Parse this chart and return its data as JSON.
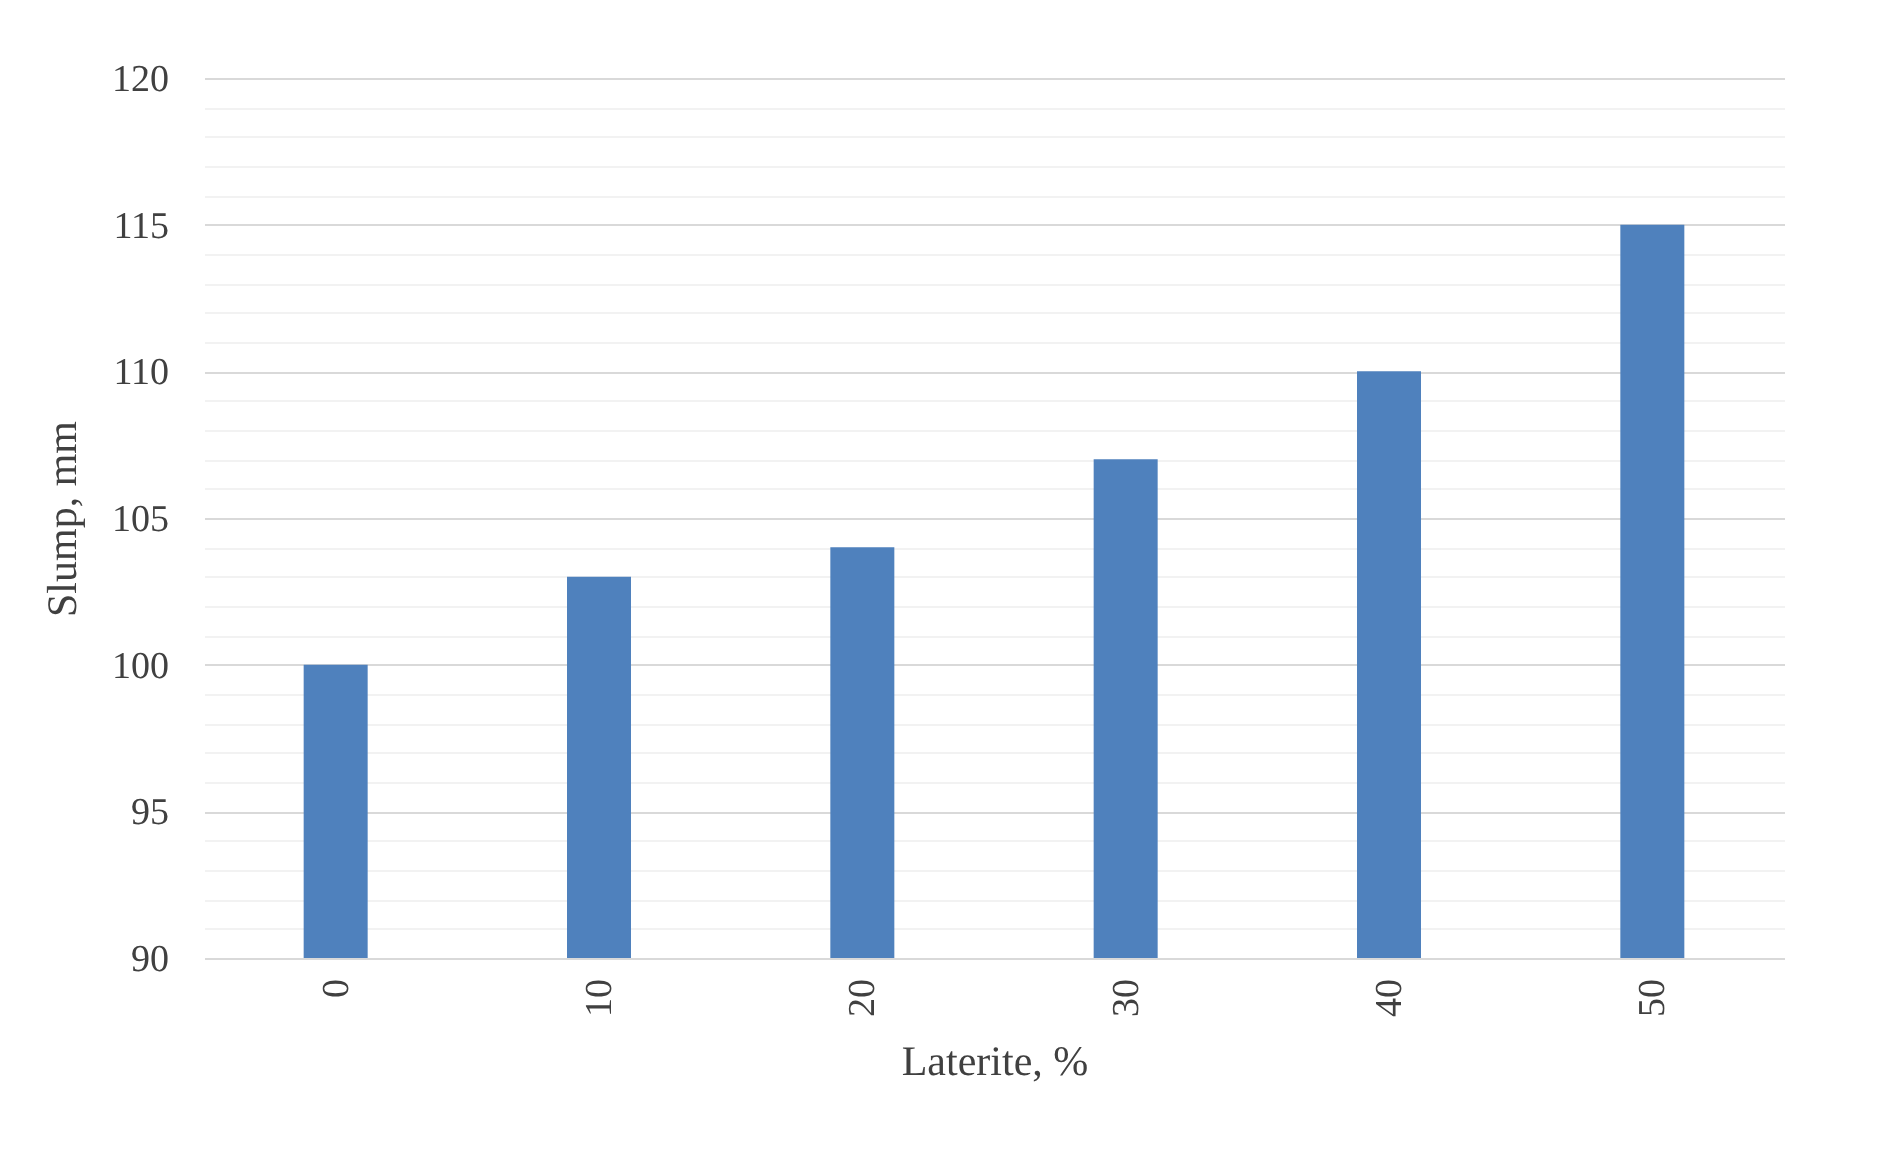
{
  "chart_data": {
    "type": "bar",
    "xlabel": "Laterite, %",
    "ylabel": "Slump, mm",
    "categories": [
      "0",
      "10",
      "20",
      "30",
      "40",
      "50"
    ],
    "series": [
      {
        "color": "#4f81bd",
        "values": [
          100,
          103,
          104,
          107,
          110,
          115
        ]
      }
    ],
    "ylim": [
      90,
      120
    ],
    "yticks": [
      90,
      {
        "value": 91,
        "label": null
      },
      {
        "value": 92,
        "label": null
      },
      {
        "value": 93,
        "label": null
      },
      {
        "value": 94,
        "label": null
      },
      95,
      {
        "value": 96,
        "label": null
      },
      {
        "value": 97,
        "label": null
      },
      {
        "value": 98,
        "label": null
      },
      {
        "value": 99,
        "label": null
      },
      100,
      {
        "value": 101,
        "label": null
      },
      {
        "value": 102,
        "label": null
      },
      {
        "value": 103,
        "label": null
      },
      {
        "value": 104,
        "label": null
      },
      105,
      {
        "value": 106,
        "label": null
      },
      {
        "value": 107,
        "label": null
      },
      {
        "value": 108,
        "label": null
      },
      {
        "value": 109,
        "label": null
      },
      110,
      {
        "value": 111,
        "label": null
      },
      {
        "value": 112,
        "label": null
      },
      {
        "value": 113,
        "label": null
      },
      {
        "value": 114,
        "label": null
      },
      115,
      {
        "value": 116,
        "label": null
      },
      {
        "value": 117,
        "label": null
      },
      {
        "value": 118,
        "label": null
      },
      {
        "value": 119,
        "label": null
      },
      120
    ],
    "grid": "y",
    "legend": false
  }
}
